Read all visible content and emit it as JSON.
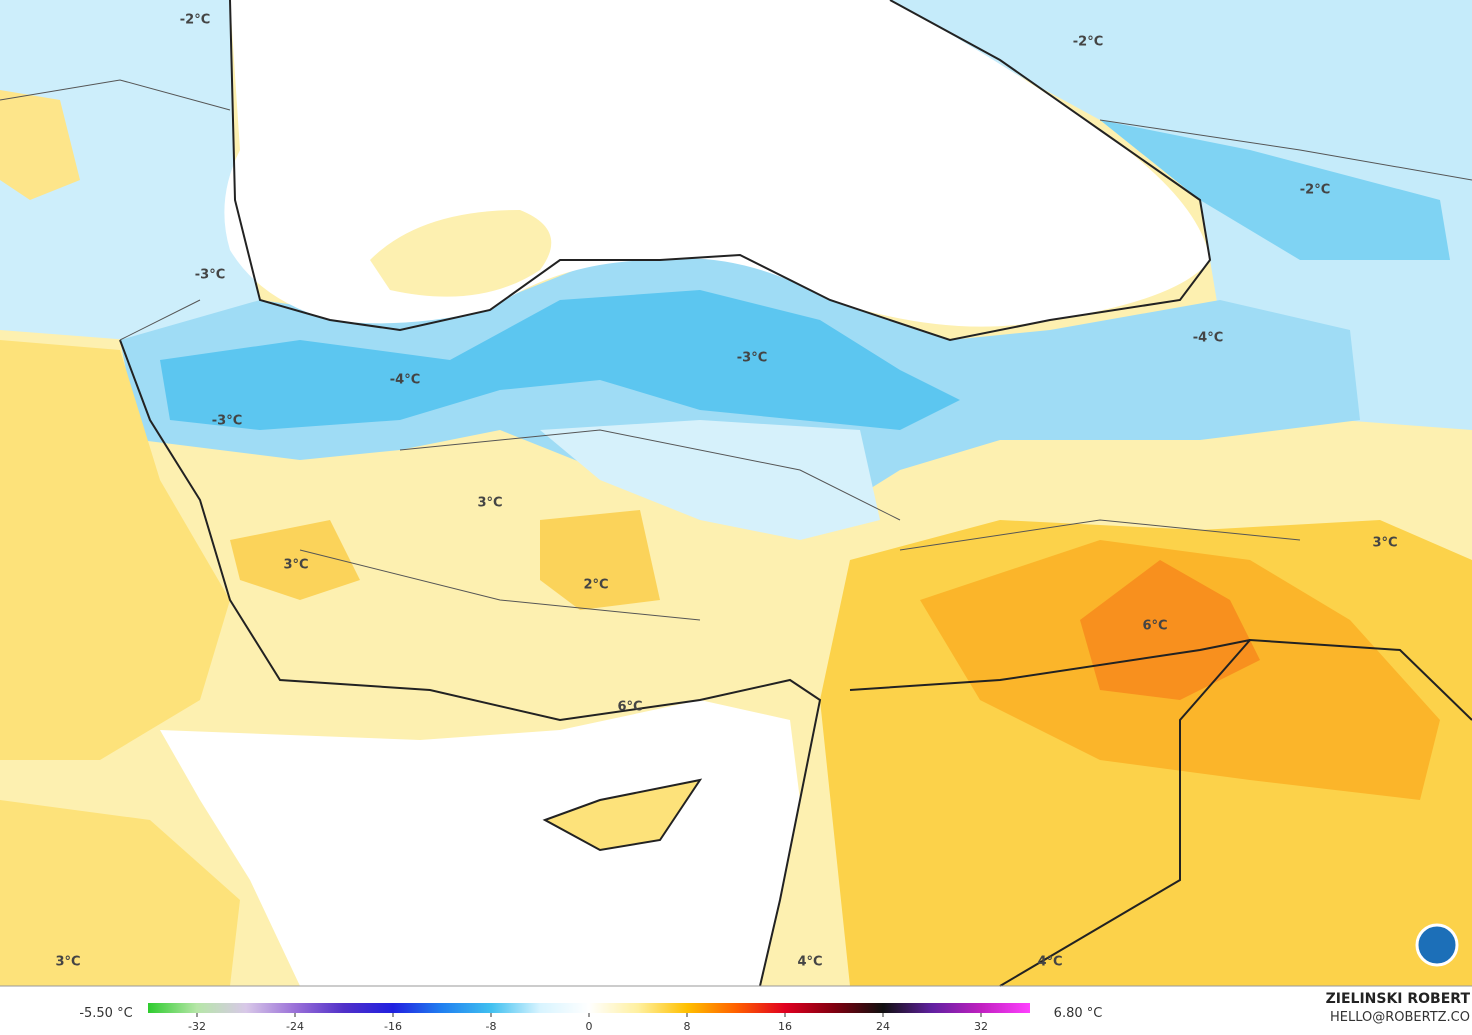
{
  "labels": [
    "-2°C",
    "-2°C",
    "-2°C",
    "-3°C",
    "-4°C",
    "-3°C",
    "-4°C",
    "-3°C",
    "3°C",
    "3°C",
    "3°C",
    "2°C",
    "6°C",
    "6°C",
    "3°C",
    "4°C",
    "4°C"
  ],
  "colorbar": {
    "min_label": "-5.50 °C",
    "max_label": "6.80 °C",
    "lim": [
      -36,
      36
    ],
    "ticks": [
      -32,
      -24,
      -16,
      -8,
      0,
      8,
      16,
      24,
      32
    ],
    "colors": [
      "#2ecc2e",
      "#b6e6a8",
      "#d8c8e8",
      "#9a70d8",
      "#5030c8",
      "#2020e0",
      "#2080f0",
      "#40c0f0",
      "#d8f4ff",
      "#ffffff",
      "#fff0a0",
      "#ffc000",
      "#ff6000",
      "#e00020",
      "#800010",
      "#101010",
      "#6020a0",
      "#c020c0",
      "#ff40ff"
    ]
  },
  "credit": {
    "author": "ZIELINSKI ROBERT",
    "email": "HELLO@ROBERTZ.CO"
  }
}
